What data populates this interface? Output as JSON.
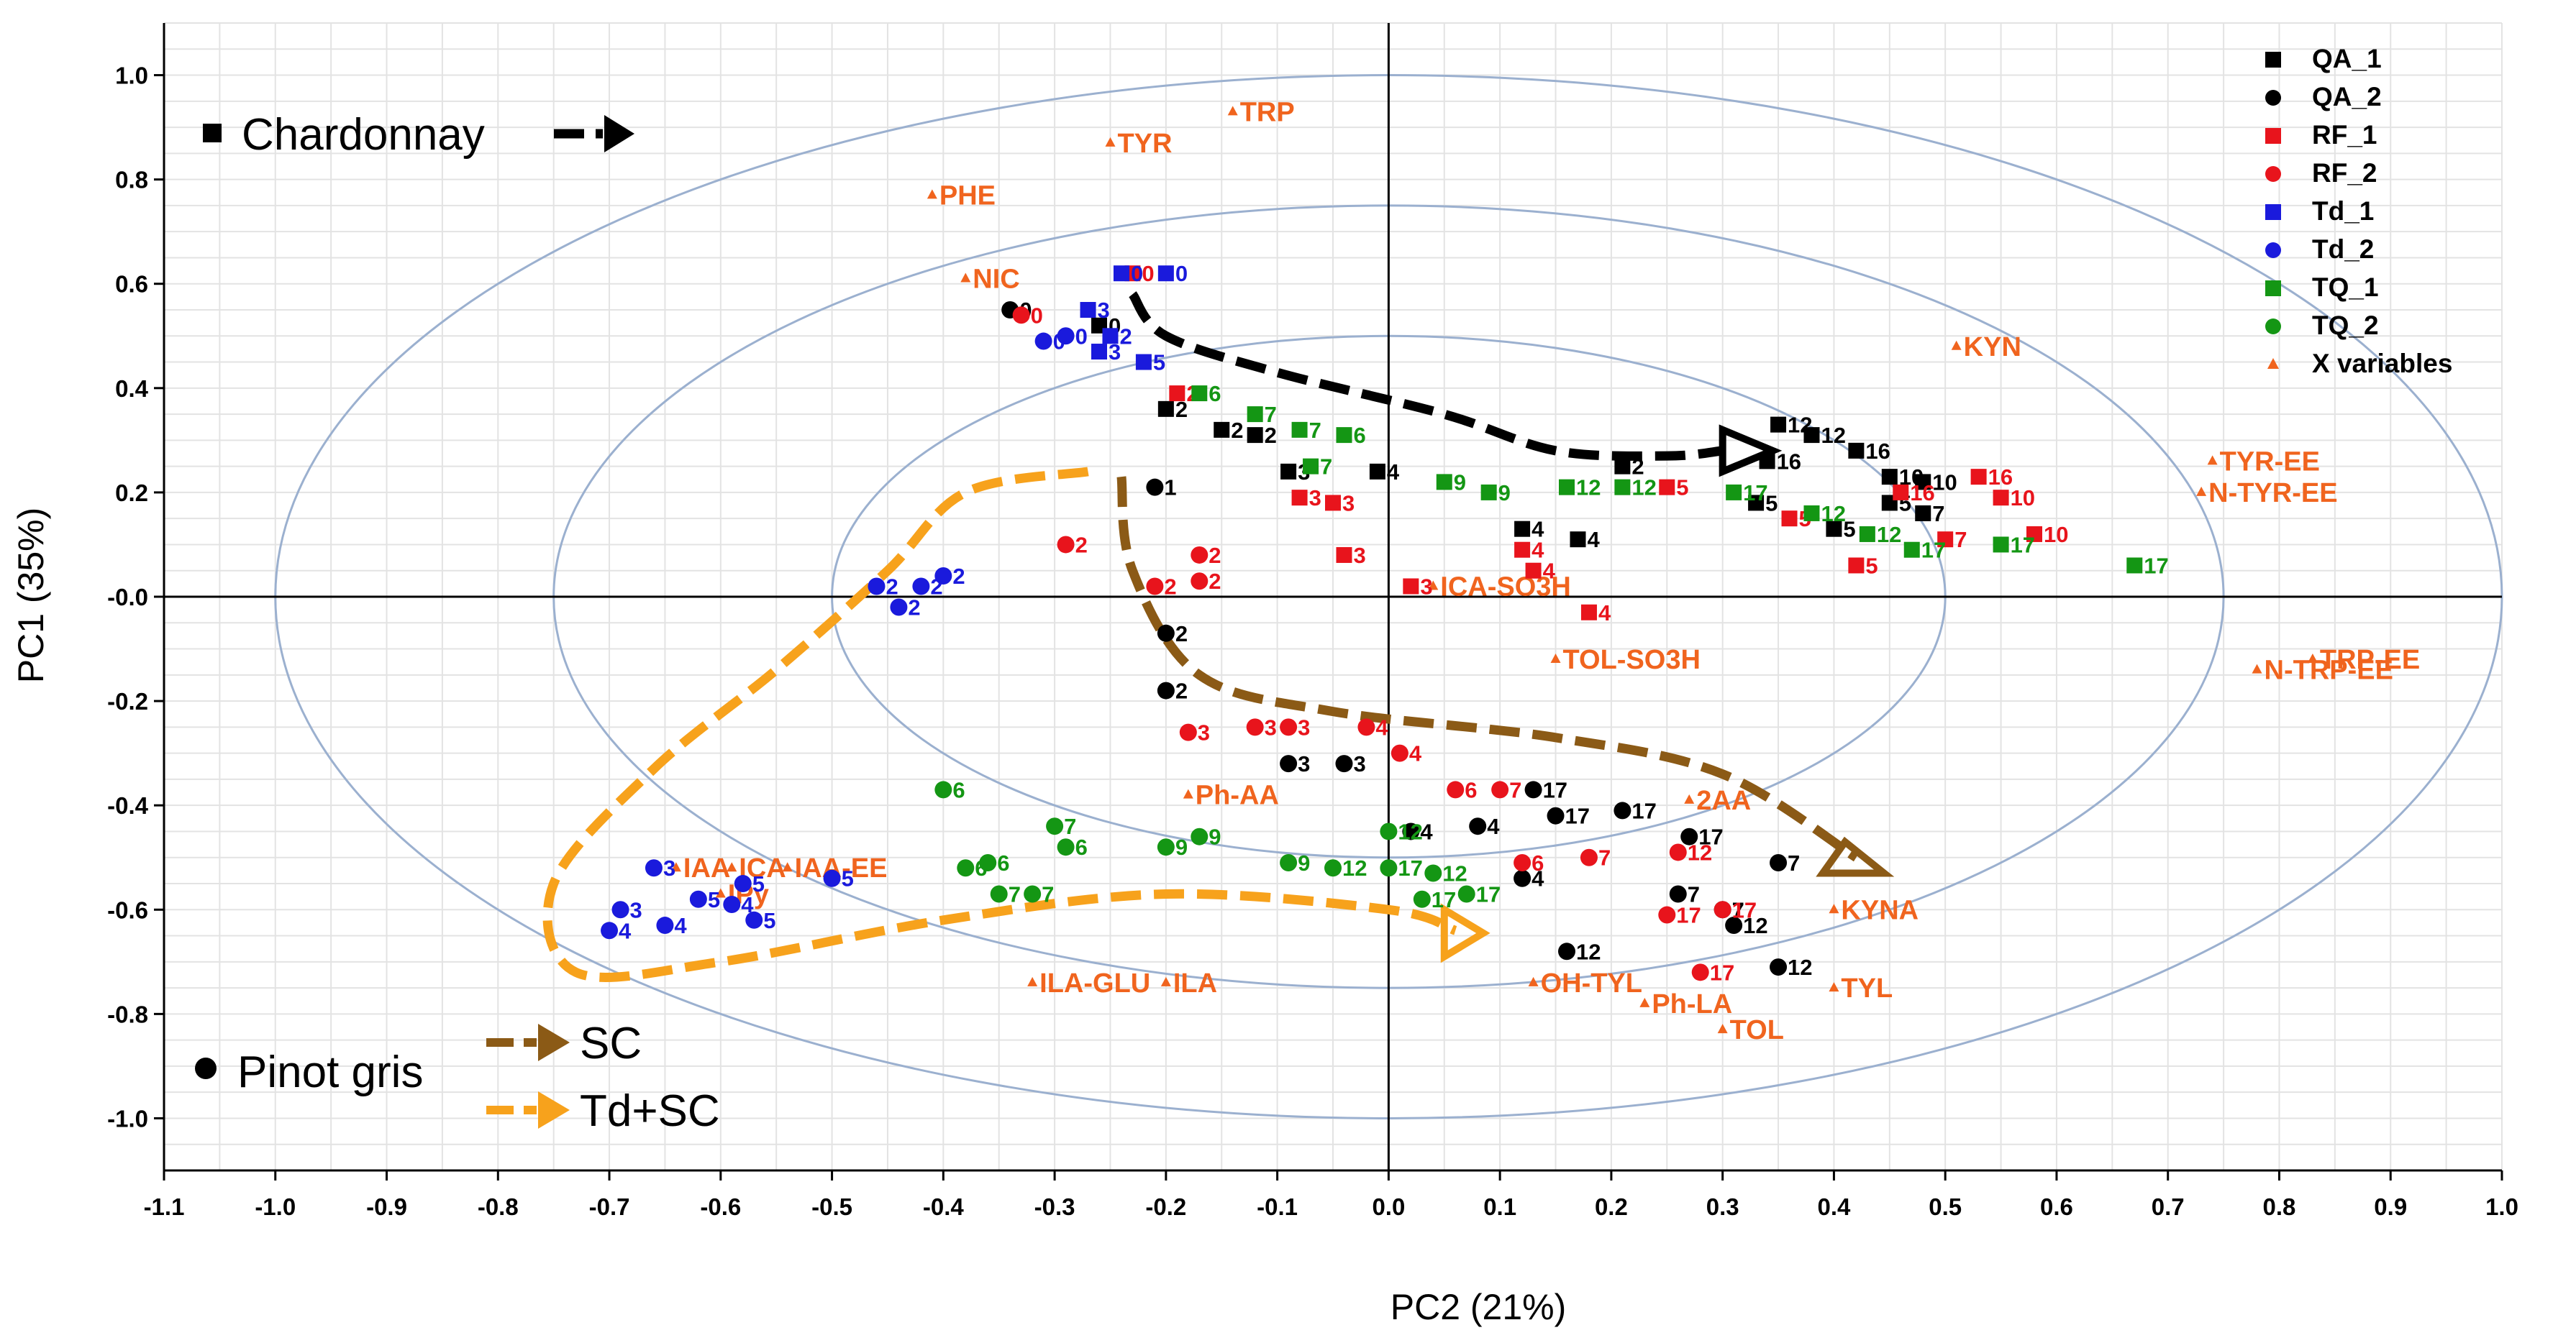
{
  "chart_data": {
    "type": "scatter",
    "xlabel": "PC2 (21%)",
    "ylabel": "PC1 (35%)",
    "xlim": [
      -1.1,
      1.0
    ],
    "ylim": [
      -1.1,
      1.1
    ],
    "x_ticks": [
      "-1.1",
      "-1.0",
      "-0.9",
      "-0.8",
      "-0.7",
      "-0.6",
      "-0.5",
      "-0.4",
      "-0.3",
      "-0.2",
      "-0.1",
      "0.0",
      "0.1",
      "0.2",
      "0.3",
      "0.4",
      "0.5",
      "0.6",
      "0.7",
      "0.8",
      "0.9",
      "1.0"
    ],
    "y_ticks": [
      "1.0",
      "0.8",
      "0.6",
      "0.4",
      "0.2",
      "-0.0",
      "-0.2",
      "-0.4",
      "-0.6",
      "-0.8",
      "-1.0"
    ],
    "grid": true,
    "correlation_circles": [
      0.5,
      0.75,
      1.0
    ],
    "colors": {
      "QA": "#000000",
      "RF": "#e8141c",
      "Td": "#1a1adc",
      "TQ": "#149614",
      "var": "#f0641e"
    },
    "legend": [
      {
        "label": "QA_1",
        "color": "#000000",
        "marker": "square"
      },
      {
        "label": "QA_2",
        "color": "#000000",
        "marker": "circle"
      },
      {
        "label": "RF_1",
        "color": "#e8141c",
        "marker": "square"
      },
      {
        "label": "RF_2",
        "color": "#e8141c",
        "marker": "circle"
      },
      {
        "label": "Td_1",
        "color": "#1a1adc",
        "marker": "square"
      },
      {
        "label": "Td_2",
        "color": "#1a1adc",
        "marker": "circle"
      },
      {
        "label": "TQ_1",
        "color": "#149614",
        "marker": "square"
      },
      {
        "label": "TQ_2",
        "color": "#149614",
        "marker": "circle"
      },
      {
        "label": "X variables",
        "color": "#f0641e",
        "marker": "triangle"
      }
    ],
    "annotations": {
      "chardonnay": "Chardonnay",
      "pinot_gris": "Pinot gris",
      "sc": "SC",
      "td_sc": "Td+SC"
    },
    "x_variables": [
      {
        "label": "TRP",
        "x": -0.14,
        "y": 0.93
      },
      {
        "label": "TYR",
        "x": -0.25,
        "y": 0.87
      },
      {
        "label": "PHE",
        "x": -0.41,
        "y": 0.77
      },
      {
        "label": "NIC",
        "x": -0.38,
        "y": 0.61
      },
      {
        "label": "KYN",
        "x": 0.51,
        "y": 0.48
      },
      {
        "label": "TYR-EE",
        "x": 0.74,
        "y": 0.26
      },
      {
        "label": "N-TYR-EE",
        "x": 0.73,
        "y": 0.2
      },
      {
        "label": "TRP-EE",
        "x": 0.83,
        "y": -0.12
      },
      {
        "label": "N-TRP-EE",
        "x": 0.78,
        "y": -0.14
      },
      {
        "label": "ICA-SO3H",
        "x": 0.04,
        "y": 0.02
      },
      {
        "label": "TOL-SO3H",
        "x": 0.15,
        "y": -0.12
      },
      {
        "label": "Ph-AA",
        "x": -0.18,
        "y": -0.38
      },
      {
        "label": "2AA",
        "x": 0.27,
        "y": -0.39
      },
      {
        "label": "IAA",
        "x": -0.64,
        "y": -0.52
      },
      {
        "label": "ICA",
        "x": -0.59,
        "y": -0.52
      },
      {
        "label": "IAA-EE",
        "x": -0.54,
        "y": -0.52
      },
      {
        "label": "IPy",
        "x": -0.6,
        "y": -0.57
      },
      {
        "label": "KYNA",
        "x": 0.4,
        "y": -0.6
      },
      {
        "label": "ILA-GLU",
        "x": -0.32,
        "y": -0.74
      },
      {
        "label": "ILA",
        "x": -0.2,
        "y": -0.74
      },
      {
        "label": "OH-TYL",
        "x": 0.13,
        "y": -0.74
      },
      {
        "label": "TYL",
        "x": 0.4,
        "y": -0.75
      },
      {
        "label": "Ph-LA",
        "x": 0.23,
        "y": -0.78
      },
      {
        "label": "TOL",
        "x": 0.3,
        "y": -0.83
      }
    ],
    "series": [
      {
        "name": "QA_1",
        "marker": "square",
        "color": "#000000",
        "points": [
          {
            "x": -0.26,
            "y": 0.52,
            "label": "0"
          },
          {
            "x": -0.2,
            "y": 0.36,
            "label": "2"
          },
          {
            "x": -0.15,
            "y": 0.32,
            "label": "2"
          },
          {
            "x": -0.12,
            "y": 0.31,
            "label": "2"
          },
          {
            "x": -0.09,
            "y": 0.24,
            "label": "3"
          },
          {
            "x": -0.01,
            "y": 0.24,
            "label": "4"
          },
          {
            "x": 0.12,
            "y": 0.13,
            "label": "4"
          },
          {
            "x": 0.17,
            "y": 0.11,
            "label": "4"
          },
          {
            "x": 0.21,
            "y": 0.25,
            "label": "2"
          },
          {
            "x": 0.35,
            "y": 0.33,
            "label": "12"
          },
          {
            "x": 0.38,
            "y": 0.31,
            "label": "12"
          },
          {
            "x": 0.34,
            "y": 0.26,
            "label": "16"
          },
          {
            "x": 0.42,
            "y": 0.28,
            "label": "16"
          },
          {
            "x": 0.45,
            "y": 0.23,
            "label": "10"
          },
          {
            "x": 0.48,
            "y": 0.22,
            "label": "10"
          },
          {
            "x": 0.33,
            "y": 0.18,
            "label": "5"
          },
          {
            "x": 0.45,
            "y": 0.18,
            "label": "5"
          },
          {
            "x": 0.48,
            "y": 0.16,
            "label": "7"
          },
          {
            "x": 0.4,
            "y": 0.13,
            "label": "5"
          }
        ]
      },
      {
        "name": "QA_2",
        "marker": "circle",
        "color": "#000000",
        "points": [
          {
            "x": -0.34,
            "y": 0.55,
            "label": "0"
          },
          {
            "x": -0.21,
            "y": 0.21,
            "label": "1"
          },
          {
            "x": -0.2,
            "y": -0.07,
            "label": "2"
          },
          {
            "x": -0.2,
            "y": -0.18,
            "label": "2"
          },
          {
            "x": -0.09,
            "y": -0.32,
            "label": "3"
          },
          {
            "x": -0.04,
            "y": -0.32,
            "label": "3"
          },
          {
            "x": 0.02,
            "y": -0.45,
            "label": "4"
          },
          {
            "x": 0.08,
            "y": -0.44,
            "label": "4"
          },
          {
            "x": 0.12,
            "y": -0.54,
            "label": "4"
          },
          {
            "x": 0.13,
            "y": -0.37,
            "label": "17"
          },
          {
            "x": 0.15,
            "y": -0.42,
            "label": "17"
          },
          {
            "x": 0.21,
            "y": -0.41,
            "label": "17"
          },
          {
            "x": 0.27,
            "y": -0.46,
            "label": "17"
          },
          {
            "x": 0.35,
            "y": -0.51,
            "label": "7"
          },
          {
            "x": 0.26,
            "y": -0.57,
            "label": "7"
          },
          {
            "x": 0.3,
            "y": -0.6,
            "label": "7"
          },
          {
            "x": 0.16,
            "y": -0.68,
            "label": "12"
          },
          {
            "x": 0.35,
            "y": -0.71,
            "label": "12"
          },
          {
            "x": 0.31,
            "y": -0.63,
            "label": "12"
          }
        ]
      },
      {
        "name": "RF_1",
        "marker": "square",
        "color": "#e8141c",
        "points": [
          {
            "x": -0.23,
            "y": 0.62,
            "label": "0"
          },
          {
            "x": -0.19,
            "y": 0.39,
            "label": "2"
          },
          {
            "x": -0.08,
            "y": 0.19,
            "label": "3"
          },
          {
            "x": -0.05,
            "y": 0.18,
            "label": "3"
          },
          {
            "x": -0.04,
            "y": 0.08,
            "label": "3"
          },
          {
            "x": 0.02,
            "y": 0.02,
            "label": "3"
          },
          {
            "x": 0.12,
            "y": 0.09,
            "label": "4"
          },
          {
            "x": 0.13,
            "y": 0.05,
            "label": "4"
          },
          {
            "x": 0.18,
            "y": -0.03,
            "label": "4"
          },
          {
            "x": 0.25,
            "y": 0.21,
            "label": "5"
          },
          {
            "x": 0.36,
            "y": 0.15,
            "label": "5"
          },
          {
            "x": 0.42,
            "y": 0.06,
            "label": "5"
          },
          {
            "x": 0.53,
            "y": 0.23,
            "label": "16"
          },
          {
            "x": 0.55,
            "y": 0.19,
            "label": "10"
          },
          {
            "x": 0.58,
            "y": 0.12,
            "label": "10"
          },
          {
            "x": 0.46,
            "y": 0.2,
            "label": "16"
          },
          {
            "x": 0.5,
            "y": 0.11,
            "label": "7"
          }
        ]
      },
      {
        "name": "RF_2",
        "marker": "circle",
        "color": "#e8141c",
        "points": [
          {
            "x": -0.33,
            "y": 0.54,
            "label": "0"
          },
          {
            "x": -0.29,
            "y": 0.1,
            "label": "2"
          },
          {
            "x": -0.21,
            "y": 0.02,
            "label": "2"
          },
          {
            "x": -0.17,
            "y": 0.08,
            "label": "2"
          },
          {
            "x": -0.17,
            "y": 0.03,
            "label": "2"
          },
          {
            "x": -0.18,
            "y": -0.26,
            "label": "3"
          },
          {
            "x": -0.12,
            "y": -0.25,
            "label": "3"
          },
          {
            "x": -0.09,
            "y": -0.25,
            "label": "3"
          },
          {
            "x": -0.02,
            "y": -0.25,
            "label": "4"
          },
          {
            "x": 0.01,
            "y": -0.3,
            "label": "4"
          },
          {
            "x": 0.06,
            "y": -0.37,
            "label": "6"
          },
          {
            "x": 0.1,
            "y": -0.37,
            "label": "7"
          },
          {
            "x": 0.12,
            "y": -0.51,
            "label": "6"
          },
          {
            "x": 0.18,
            "y": -0.5,
            "label": "7"
          },
          {
            "x": 0.26,
            "y": -0.49,
            "label": "12"
          },
          {
            "x": 0.25,
            "y": -0.61,
            "label": "17"
          },
          {
            "x": 0.3,
            "y": -0.6,
            "label": "17"
          },
          {
            "x": 0.28,
            "y": -0.72,
            "label": "17"
          }
        ]
      },
      {
        "name": "Td_1",
        "marker": "square",
        "color": "#1a1adc",
        "points": [
          {
            "x": -0.24,
            "y": 0.62,
            "label": "0"
          },
          {
            "x": -0.27,
            "y": 0.55,
            "label": "3"
          },
          {
            "x": -0.25,
            "y": 0.5,
            "label": "2"
          },
          {
            "x": -0.26,
            "y": 0.47,
            "label": "3"
          },
          {
            "x": -0.22,
            "y": 0.45,
            "label": "5"
          },
          {
            "x": -0.2,
            "y": 0.62,
            "label": "0"
          }
        ]
      },
      {
        "name": "Td_2",
        "marker": "circle",
        "color": "#1a1adc",
        "points": [
          {
            "x": -0.31,
            "y": 0.49,
            "label": "0"
          },
          {
            "x": -0.29,
            "y": 0.5,
            "label": "0"
          },
          {
            "x": -0.46,
            "y": 0.02,
            "label": "2"
          },
          {
            "x": -0.42,
            "y": 0.02,
            "label": "2"
          },
          {
            "x": -0.4,
            "y": 0.04,
            "label": "2"
          },
          {
            "x": -0.44,
            "y": -0.02,
            "label": "2"
          },
          {
            "x": -0.66,
            "y": -0.52,
            "label": "3"
          },
          {
            "x": -0.69,
            "y": -0.6,
            "label": "3"
          },
          {
            "x": -0.62,
            "y": -0.58,
            "label": "5"
          },
          {
            "x": -0.58,
            "y": -0.55,
            "label": "5"
          },
          {
            "x": -0.59,
            "y": -0.59,
            "label": "4"
          },
          {
            "x": -0.65,
            "y": -0.63,
            "label": "4"
          },
          {
            "x": -0.7,
            "y": -0.64,
            "label": "4"
          },
          {
            "x": -0.5,
            "y": -0.54,
            "label": "5"
          },
          {
            "x": -0.57,
            "y": -0.62,
            "label": "5"
          }
        ]
      },
      {
        "name": "TQ_1",
        "marker": "square",
        "color": "#149614",
        "points": [
          {
            "x": -0.17,
            "y": 0.39,
            "label": "6"
          },
          {
            "x": -0.12,
            "y": 0.35,
            "label": "7"
          },
          {
            "x": -0.08,
            "y": 0.32,
            "label": "7"
          },
          {
            "x": -0.04,
            "y": 0.31,
            "label": "6"
          },
          {
            "x": -0.07,
            "y": 0.25,
            "label": "7"
          },
          {
            "x": 0.05,
            "y": 0.22,
            "label": "9"
          },
          {
            "x": 0.09,
            "y": 0.2,
            "label": "9"
          },
          {
            "x": 0.16,
            "y": 0.21,
            "label": "12"
          },
          {
            "x": 0.21,
            "y": 0.21,
            "label": "12"
          },
          {
            "x": 0.31,
            "y": 0.2,
            "label": "17"
          },
          {
            "x": 0.38,
            "y": 0.16,
            "label": "12"
          },
          {
            "x": 0.43,
            "y": 0.12,
            "label": "12"
          },
          {
            "x": 0.47,
            "y": 0.09,
            "label": "17"
          },
          {
            "x": 0.55,
            "y": 0.1,
            "label": "17"
          },
          {
            "x": 0.67,
            "y": 0.06,
            "label": "17"
          }
        ]
      },
      {
        "name": "TQ_2",
        "marker": "circle",
        "color": "#149614",
        "points": [
          {
            "x": -0.4,
            "y": -0.37,
            "label": "6"
          },
          {
            "x": -0.3,
            "y": -0.44,
            "label": "7"
          },
          {
            "x": -0.29,
            "y": -0.48,
            "label": "6"
          },
          {
            "x": -0.38,
            "y": -0.52,
            "label": "6"
          },
          {
            "x": -0.36,
            "y": -0.51,
            "label": "6"
          },
          {
            "x": -0.35,
            "y": -0.57,
            "label": "7"
          },
          {
            "x": -0.32,
            "y": -0.57,
            "label": "7"
          },
          {
            "x": -0.2,
            "y": -0.48,
            "label": "9"
          },
          {
            "x": -0.17,
            "y": -0.46,
            "label": "9"
          },
          {
            "x": -0.09,
            "y": -0.51,
            "label": "9"
          },
          {
            "x": -0.05,
            "y": -0.52,
            "label": "12"
          },
          {
            "x": 0.0,
            "y": -0.45,
            "label": "12"
          },
          {
            "x": 0.0,
            "y": -0.52,
            "label": "17"
          },
          {
            "x": 0.04,
            "y": -0.53,
            "label": "12"
          },
          {
            "x": 0.03,
            "y": -0.58,
            "label": "17"
          },
          {
            "x": 0.07,
            "y": -0.57,
            "label": "17"
          }
        ]
      }
    ]
  }
}
